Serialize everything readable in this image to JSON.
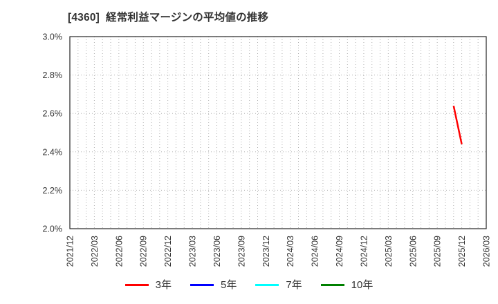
{
  "chart_data": {
    "type": "line",
    "title": "[4360]  経常利益マージンの平均値の推移",
    "xlabel": "",
    "ylabel": "",
    "ylim": [
      2.0,
      3.0
    ],
    "ytick_values": [
      2.0,
      2.2,
      2.4,
      2.6,
      2.8,
      3.0
    ],
    "ytick_labels": [
      "2.0%",
      "2.2%",
      "2.4%",
      "2.6%",
      "2.8%",
      "3.0%"
    ],
    "xtick_labels": [
      "2021/12",
      "2022/03",
      "2022/06",
      "2022/09",
      "2022/12",
      "2023/03",
      "2023/06",
      "2023/09",
      "2023/12",
      "2024/03",
      "2024/06",
      "2024/09",
      "2024/12",
      "2025/03",
      "2025/06",
      "2025/09",
      "2025/12",
      "2026/03"
    ],
    "grid": {
      "vertical": "monthly, dotted",
      "horizontal": "every 0.2%, dotted",
      "visible": true
    },
    "legend_position": "bottom",
    "series": [
      {
        "name": "3年",
        "color": "#ff0000",
        "points": [
          [
            "2025/11",
            2.64
          ],
          [
            "2025/12",
            2.44
          ]
        ]
      },
      {
        "name": "5年",
        "color": "#0000ff",
        "points": []
      },
      {
        "name": "7年",
        "color": "#00ffff",
        "points": []
      },
      {
        "name": "10年",
        "color": "#008000",
        "points": []
      }
    ]
  },
  "colors": {
    "background": "#ffffff",
    "axis_border": "#262626",
    "gridline": "#b0b0b0",
    "text": "#333333"
  }
}
